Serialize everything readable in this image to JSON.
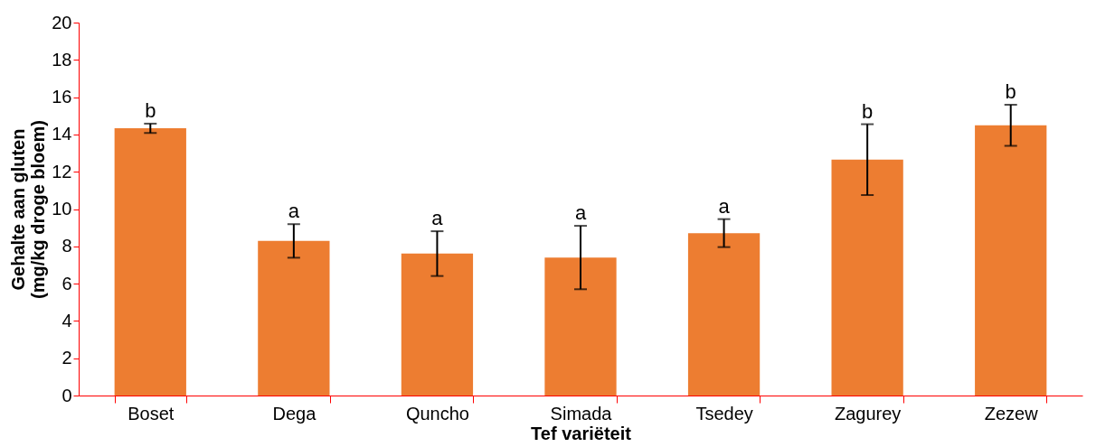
{
  "chart_data": {
    "type": "bar",
    "xlabel": "Tef variëteit",
    "ylabel": "Gehalte aan gluten\n(mg/kg droge bloem)",
    "categories": [
      "Boset",
      "Dega",
      "Quncho",
      "Simada",
      "Tsedey",
      "Zagurey",
      "Zezew"
    ],
    "values": [
      14.33,
      8.29,
      7.61,
      7.4,
      8.71,
      12.65,
      14.49
    ],
    "errors": [
      0.25,
      0.9,
      1.2,
      1.7,
      0.75,
      1.9,
      1.1
    ],
    "color": "#ed7d31",
    "ylim": [
      0,
      20
    ],
    "yticks": [
      0,
      2,
      4,
      6,
      8,
      10,
      12,
      14,
      16,
      18,
      20
    ],
    "grid": false,
    "annotations": [
      {
        "text": "b",
        "x": "Boset",
        "y": 14.58
      },
      {
        "text": "a",
        "x": "Dega",
        "y": 9.19
      },
      {
        "text": "a",
        "x": "Quncho",
        "y": 8.81
      },
      {
        "text": "a",
        "x": "Simada",
        "y": 9.1
      },
      {
        "text": "a",
        "x": "Tsedey",
        "y": 9.46
      },
      {
        "text": "b",
        "x": "Zagurey",
        "y": 14.55
      },
      {
        "text": "b",
        "x": "Zezew",
        "y": 15.59
      }
    ]
  }
}
